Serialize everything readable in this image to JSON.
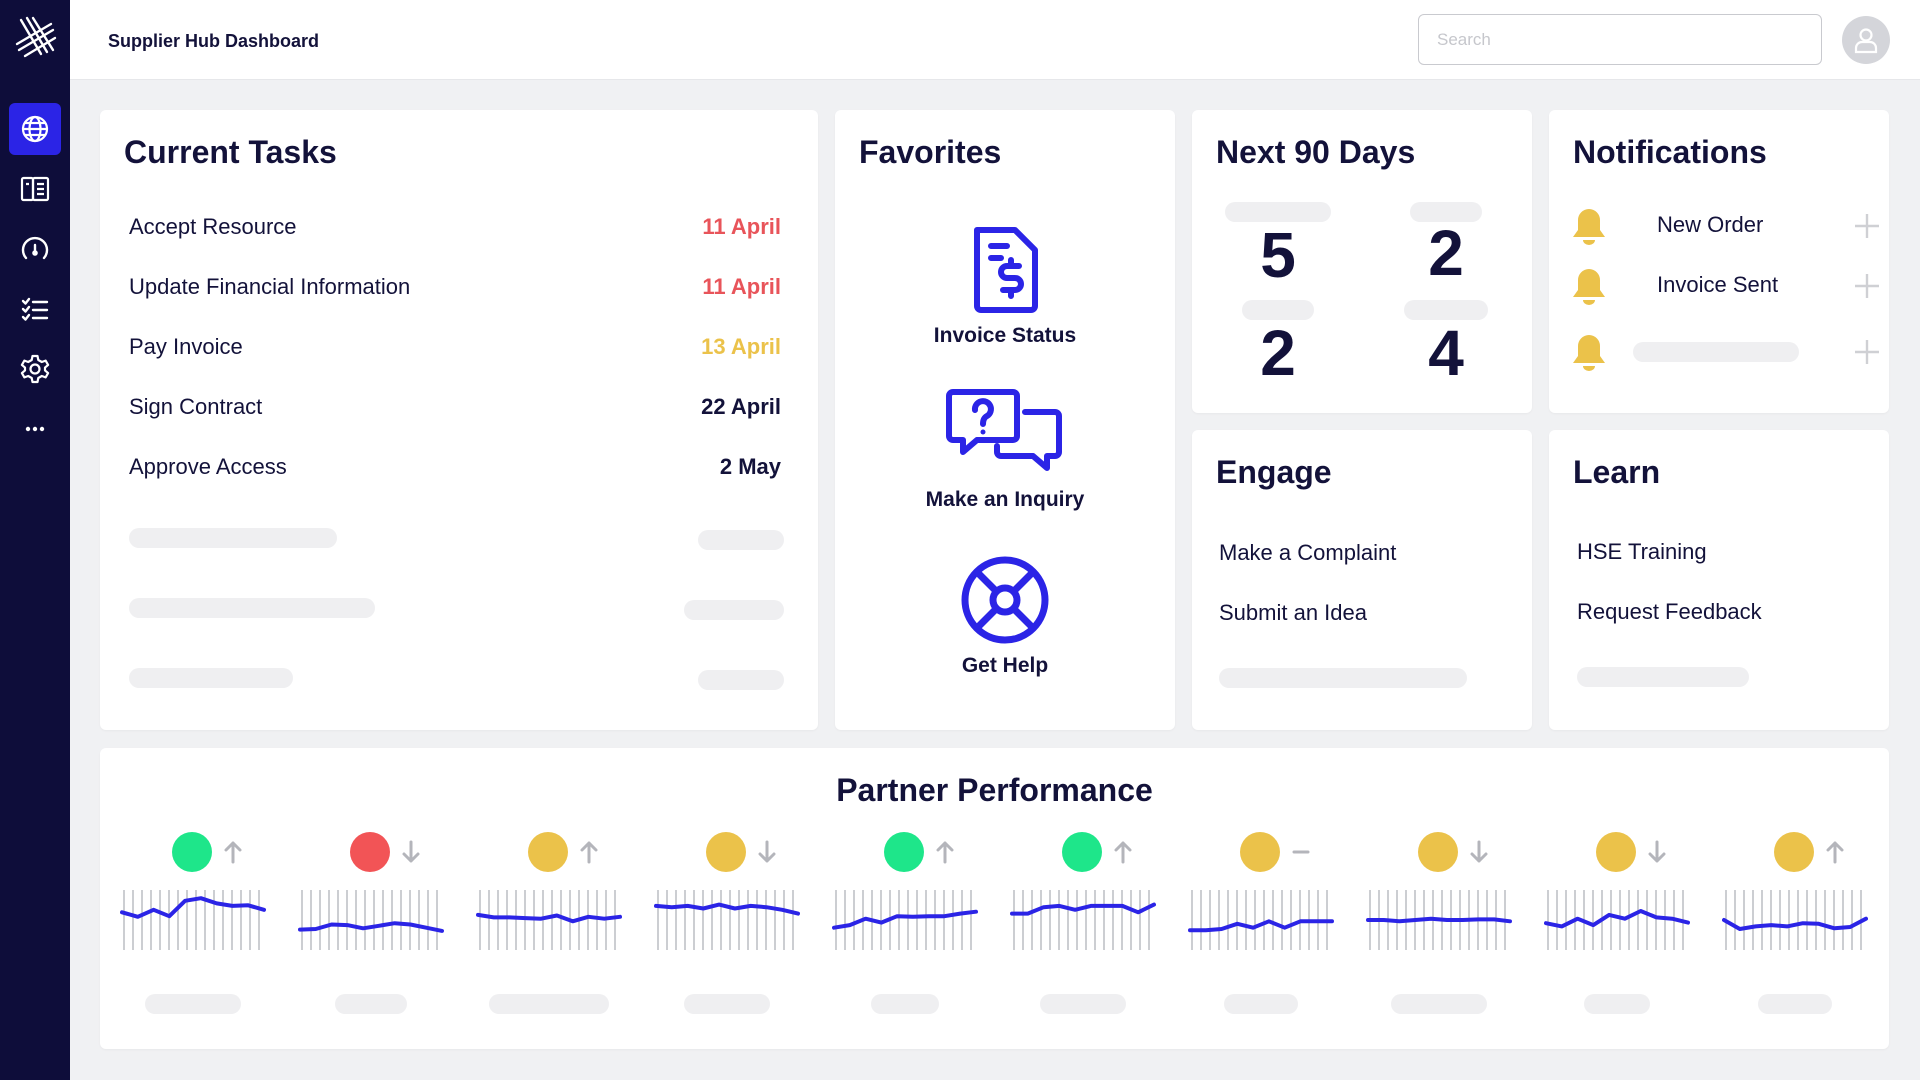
{
  "app": {
    "title": "Supplier Hub Dashboard"
  },
  "search": {
    "placeholder": "Search"
  },
  "sidebar": {
    "items": [
      {
        "icon": "globe-icon",
        "active": true
      },
      {
        "icon": "catalog-icon",
        "active": false
      },
      {
        "icon": "gauge-icon",
        "active": false
      },
      {
        "icon": "checklist-icon",
        "active": false
      },
      {
        "icon": "gear-icon",
        "active": false
      },
      {
        "icon": "more-icon",
        "active": false
      }
    ]
  },
  "current_tasks": {
    "title": "Current Tasks",
    "items": [
      {
        "name": "Accept Resource",
        "date": "11 April",
        "status_color": "#E8545A"
      },
      {
        "name": "Update Financial Information",
        "date": "11 April",
        "status_color": "#E8545A"
      },
      {
        "name": "Pay Invoice",
        "date": "13 April",
        "status_color": "#EBC24A"
      },
      {
        "name": "Sign Contract",
        "date": "22 April",
        "status_color": "#13123A"
      },
      {
        "name": "Approve Access",
        "date": "2 May",
        "status_color": "#13123A"
      }
    ]
  },
  "favorites": {
    "title": "Favorites",
    "items": [
      {
        "label": "Invoice Status",
        "icon": "invoice-icon"
      },
      {
        "label": "Make an Inquiry",
        "icon": "inquiry-chat-icon"
      },
      {
        "label": "Get Help",
        "icon": "lifebuoy-icon"
      }
    ]
  },
  "next90": {
    "title": "Next 90 Days",
    "values": [
      "5",
      "2",
      "2",
      "4"
    ]
  },
  "notifications": {
    "title": "Notifications",
    "items": [
      {
        "label": "New Order"
      },
      {
        "label": "Invoice Sent"
      }
    ]
  },
  "engage": {
    "title": "Engage",
    "items": [
      "Make a Complaint",
      "Submit an Idea"
    ]
  },
  "learn": {
    "title": "Learn",
    "items": [
      "HSE Training",
      "Request Feedback"
    ]
  },
  "performance": {
    "title": "Partner Performance",
    "partners": [
      {
        "status": "#1EE68A",
        "trend": "up",
        "spark": [
          62,
          55,
          66,
          56,
          80,
          84,
          76,
          72,
          73,
          66
        ]
      },
      {
        "status": "#F25456",
        "trend": "down",
        "spark": [
          35,
          36,
          43,
          42,
          37,
          41,
          45,
          43,
          38,
          33
        ]
      },
      {
        "status": "#EBC24A",
        "trend": "up",
        "spark": [
          58,
          54,
          54,
          53,
          52,
          57,
          48,
          55,
          52,
          55
        ]
      },
      {
        "status": "#EBC24A",
        "trend": "down",
        "spark": [
          72,
          70,
          72,
          68,
          74,
          68,
          72,
          70,
          66,
          60
        ]
      },
      {
        "status": "#1EE68A",
        "trend": "up",
        "spark": [
          38,
          42,
          52,
          46,
          56,
          55,
          56,
          56,
          60,
          63
        ]
      },
      {
        "status": "#1EE68A",
        "trend": "up",
        "spark": [
          60,
          60,
          70,
          72,
          66,
          72,
          72,
          72,
          62,
          74
        ]
      },
      {
        "status": "#EBC24A",
        "trend": "flat",
        "spark": [
          34,
          34,
          36,
          44,
          38,
          48,
          38,
          48,
          48,
          48
        ]
      },
      {
        "status": "#EBC24A",
        "trend": "down",
        "spark": [
          50,
          50,
          48,
          50,
          52,
          50,
          50,
          51,
          51,
          48
        ]
      },
      {
        "status": "#EBC24A",
        "trend": "down",
        "spark": [
          45,
          40,
          52,
          42,
          58,
          52,
          64,
          54,
          52,
          46
        ]
      },
      {
        "status": "#EBC24A",
        "trend": "up",
        "spark": [
          50,
          36,
          40,
          42,
          40,
          45,
          44,
          37,
          39,
          52
        ]
      }
    ]
  },
  "colors": {
    "accent": "#2B24E6",
    "sidebar_bg": "#0E0D3A",
    "text_dark": "#13123A",
    "bell": "#EBC24A"
  }
}
